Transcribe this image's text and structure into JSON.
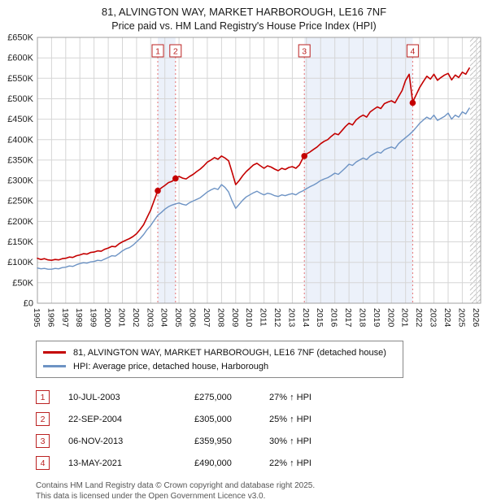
{
  "title": "81, ALVINGTON WAY, MARKET HARBOROUGH, LE16 7NF",
  "subtitle": "Price paid vs. HM Land Registry's House Price Index (HPI)",
  "legend": {
    "series1": "81, ALVINGTON WAY, MARKET HARBOROUGH, LE16 7NF (detached house)",
    "series2": "HPI: Average price, detached house, Harborough"
  },
  "sales": [
    {
      "num": "1",
      "date": "10-JUL-2003",
      "price": "£275,000",
      "hpi": "27% ↑ HPI"
    },
    {
      "num": "2",
      "date": "22-SEP-2004",
      "price": "£305,000",
      "hpi": "25% ↑ HPI"
    },
    {
      "num": "3",
      "date": "06-NOV-2013",
      "price": "£359,950",
      "hpi": "30% ↑ HPI"
    },
    {
      "num": "4",
      "date": "13-MAY-2021",
      "price": "£490,000",
      "hpi": "22% ↑ HPI"
    }
  ],
  "footer": {
    "line1": "Contains HM Land Registry data © Crown copyright and database right 2025.",
    "line2": "This data is licensed under the Open Government Licence v3.0."
  },
  "chart_data": {
    "type": "line",
    "title": "81, ALVINGTON WAY, MARKET HARBOROUGH, LE16 7NF — Price paid vs. HPI",
    "x_start": 1995,
    "x_step": 0.25,
    "x_range": [
      1995,
      2026.3
    ],
    "y_range_k": [
      0,
      650
    ],
    "y_tick_step_k": 50,
    "y_tick_labels": [
      "£0",
      "£50K",
      "£100K",
      "£150K",
      "£200K",
      "£250K",
      "£300K",
      "£350K",
      "£400K",
      "£450K",
      "£500K",
      "£550K",
      "£600K",
      "£650K"
    ],
    "x_ticks": [
      1995,
      1996,
      1997,
      1998,
      1999,
      2000,
      2001,
      2002,
      2003,
      2004,
      2005,
      2006,
      2007,
      2008,
      2009,
      2010,
      2011,
      2012,
      2013,
      2014,
      2015,
      2016,
      2017,
      2018,
      2019,
      2020,
      2021,
      2022,
      2023,
      2024,
      2025,
      2026
    ],
    "series": [
      {
        "id": "price-paid",
        "name": "81, ALVINGTON WAY, MARKET HARBOROUGH, LE16 7NF (detached house)",
        "color": "#c40000",
        "width": 1.6,
        "values_k": [
          110,
          107,
          109,
          106,
          105,
          107,
          106,
          109,
          110,
          113,
          112,
          116,
          118,
          121,
          120,
          124,
          125,
          128,
          127,
          132,
          135,
          139,
          138,
          145,
          150,
          154,
          158,
          163,
          170,
          180,
          192,
          210,
          228,
          252,
          275,
          282,
          288,
          295,
          298,
          305,
          310,
          306,
          304,
          310,
          315,
          322,
          328,
          336,
          345,
          350,
          356,
          352,
          360,
          355,
          348,
          320,
          290,
          300,
          312,
          322,
          330,
          338,
          342,
          336,
          330,
          336,
          333,
          328,
          324,
          330,
          327,
          332,
          334,
          330,
          338,
          355,
          365,
          370,
          376,
          382,
          390,
          396,
          400,
          408,
          415,
          412,
          422,
          432,
          440,
          436,
          448,
          455,
          460,
          455,
          468,
          474,
          480,
          476,
          488,
          492,
          495,
          490,
          505,
          520,
          545,
          560,
          492,
          510,
          528,
          542,
          555,
          548,
          560,
          545,
          552,
          558,
          562,
          546,
          558,
          552,
          565,
          560,
          575
        ]
      },
      {
        "id": "hpi",
        "name": "HPI: Average price, detached house, Harborough",
        "color": "#6d93c4",
        "width": 1.4,
        "values_k": [
          86,
          84,
          85,
          83,
          83,
          85,
          84,
          87,
          88,
          91,
          90,
          94,
          97,
          99,
          98,
          101,
          102,
          105,
          104,
          108,
          112,
          116,
          115,
          121,
          128,
          133,
          136,
          142,
          150,
          158,
          168,
          180,
          190,
          203,
          215,
          222,
          230,
          236,
          240,
          243,
          245,
          242,
          240,
          246,
          250,
          254,
          258,
          265,
          272,
          277,
          281,
          278,
          290,
          283,
          272,
          250,
          232,
          242,
          252,
          260,
          265,
          270,
          274,
          269,
          265,
          269,
          267,
          263,
          261,
          265,
          263,
          266,
          268,
          265,
          271,
          275,
          280,
          285,
          289,
          294,
          300,
          304,
          307,
          312,
          318,
          315,
          323,
          331,
          340,
          337,
          345,
          350,
          355,
          351,
          360,
          365,
          370,
          367,
          375,
          379,
          382,
          378,
          390,
          398,
          405,
          412,
          420,
          430,
          440,
          448,
          455,
          450,
          460,
          447,
          452,
          457,
          465,
          450,
          460,
          455,
          468,
          463,
          477
        ]
      }
    ],
    "markers": [
      {
        "n": "1",
        "x": 2003.5,
        "y_k": 275
      },
      {
        "n": "2",
        "x": 2004.75,
        "y_k": 305
      },
      {
        "n": "3",
        "x": 2013.85,
        "y_k": 359.95
      },
      {
        "n": "4",
        "x": 2021.5,
        "y_k": 490
      }
    ],
    "shaded_bands": [
      [
        2003.5,
        2004.75
      ],
      [
        2013.85,
        2021.5
      ]
    ],
    "hatch_band": [
      2025.55,
      2026.3
    ],
    "colors": {
      "band": "#dfe8f6",
      "grid": "#d6d6d6",
      "frame": "#a0a0a0",
      "sale_line": "#e57373",
      "marker_box": "#bb2222",
      "hatch": "#c4c4c4",
      "tick_text": "#222"
    }
  }
}
